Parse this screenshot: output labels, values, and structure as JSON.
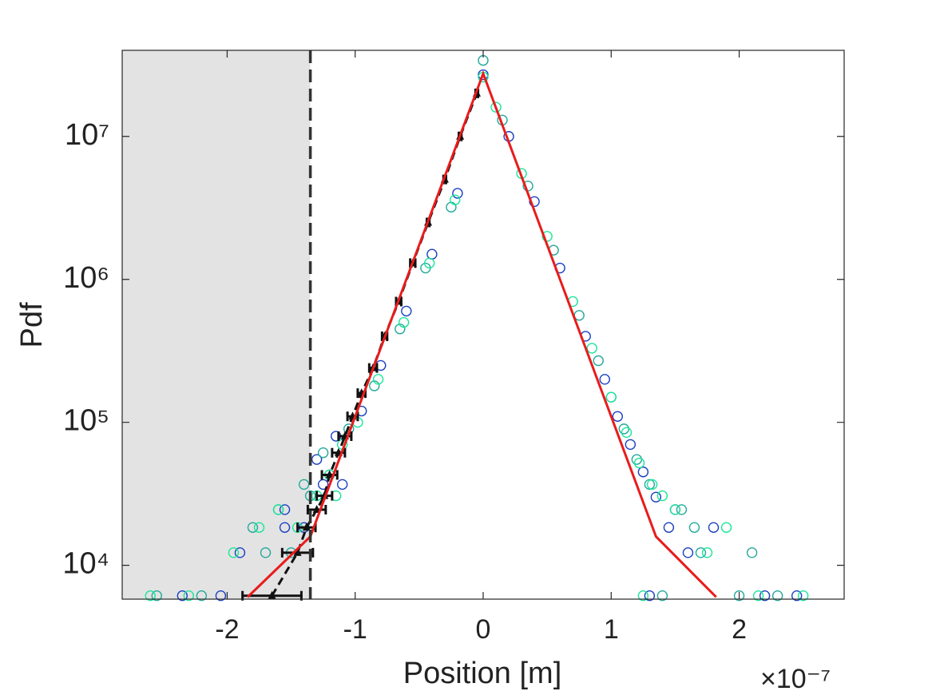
{
  "chart_data": {
    "type": "scatter",
    "xlabel": "Position [m]",
    "ylabel": "Pdf",
    "x_multiplier_label": "×10⁻⁷",
    "xlim": [
      -2.82,
      2.82
    ],
    "ylim": [
      5800,
      40000000
    ],
    "log_y": true,
    "xticks": [
      -2,
      -1,
      0,
      1,
      2
    ],
    "yticks": [
      {
        "value": 10000,
        "label": "10⁴"
      },
      {
        "value": 100000,
        "label": "10⁵"
      },
      {
        "value": 1000000,
        "label": "10⁶"
      },
      {
        "value": 10000000,
        "label": "10⁷"
      }
    ],
    "threshold": -1.35,
    "shade_color": "#e3e3e3",
    "series": [
      {
        "color": "#1a3fc4",
        "x": [
          -2.35,
          -2.05,
          -1.9,
          -1.55,
          -1.4,
          -1.55,
          -1.25,
          -1.1,
          -1.3,
          -1.15,
          -0.95,
          -0.8,
          -0.6,
          -0.4,
          -0.2,
          0,
          0.2,
          0.4,
          0.6,
          0.8,
          0.95,
          1.05,
          1.15,
          1.25,
          1.35,
          1.5,
          1.45,
          1.6,
          1.8,
          2.2,
          2.45,
          1.3
        ],
        "values": [
          6130,
          6130,
          12260,
          18390,
          18390,
          24520,
          36780,
          36780,
          55000,
          80000,
          120000,
          250000,
          600000,
          1500000,
          4000000,
          27000000,
          10000000,
          3500000,
          1200000,
          400000,
          200000,
          110000,
          70000,
          45000,
          30000,
          24520,
          18390,
          12260,
          18390,
          6130,
          6130,
          6130
        ]
      },
      {
        "color": "#22a89a",
        "x": [
          -2.55,
          -2.2,
          -1.7,
          -1.8,
          -1.5,
          -1.6,
          -1.35,
          -1.2,
          -1.4,
          -1.25,
          -1.05,
          -0.85,
          -0.65,
          -0.45,
          -0.25,
          0,
          0.15,
          0.35,
          0.55,
          0.75,
          0.9,
          1.0,
          1.1,
          1.2,
          1.3,
          1.55,
          1.65,
          1.7,
          2.1,
          2.0,
          2.3,
          1.4
        ],
        "values": [
          6130,
          6130,
          12260,
          18390,
          12260,
          24520,
          30650,
          42900,
          36780,
          61300,
          90000,
          180000,
          450000,
          1200000,
          3200000,
          34000000,
          13000000,
          4500000,
          1600000,
          560000,
          270000,
          150000,
          90000,
          55000,
          36780,
          24520,
          18390,
          12260,
          12260,
          6130,
          6130,
          6130
        ]
      },
      {
        "color": "#19e59a",
        "x": [
          -2.6,
          -2.3,
          -1.95,
          -1.6,
          -1.45,
          -1.75,
          -1.3,
          -1.15,
          -1.2,
          -1.1,
          -0.98,
          -0.82,
          -0.62,
          -0.42,
          -0.22,
          0,
          0.1,
          0.3,
          0.5,
          0.7,
          0.85,
          1.0,
          1.12,
          1.22,
          1.32,
          1.4,
          1.5,
          1.75,
          1.9,
          2.5,
          2.15,
          1.25
        ],
        "values": [
          6130,
          6130,
          12260,
          24520,
          18390,
          18390,
          30650,
          30650,
          42900,
          70000,
          100000,
          200000,
          500000,
          1300000,
          3600000,
          26000000,
          16000000,
          5500000,
          2000000,
          700000,
          330000,
          150000,
          85000,
          52000,
          36780,
          30650,
          24520,
          12260,
          18390,
          6130,
          6130,
          6130
        ]
      }
    ],
    "errorbars": {
      "color": "#111111",
      "x": [
        -1.65,
        -1.45,
        -1.38,
        -1.3,
        -1.24,
        -1.2,
        -1.13,
        -1.08,
        -1.02,
        -0.95,
        -0.86,
        -0.77,
        -0.66,
        -0.55,
        -0.43,
        -0.3,
        -0.18,
        -0.05
      ],
      "xerr": [
        0.23,
        0.12,
        0.07,
        0.07,
        0.06,
        0.06,
        0.05,
        0.05,
        0.04,
        0.03,
        0.03,
        0.02,
        0.02,
        0.02,
        0.01,
        0.01,
        0.01,
        0.01
      ],
      "values": [
        6130,
        12260,
        18390,
        24520,
        30650,
        42900,
        61300,
        80000,
        110000,
        160000,
        240000,
        400000,
        700000,
        1300000,
        2500000,
        5000000,
        10000000,
        20000000
      ]
    },
    "fit_line": {
      "color": "#e81c1c",
      "x": [
        -1.84,
        -1.35,
        0,
        1.35,
        1.82
      ],
      "values": [
        6000,
        15900,
        27500000,
        15900,
        6000
      ]
    }
  }
}
